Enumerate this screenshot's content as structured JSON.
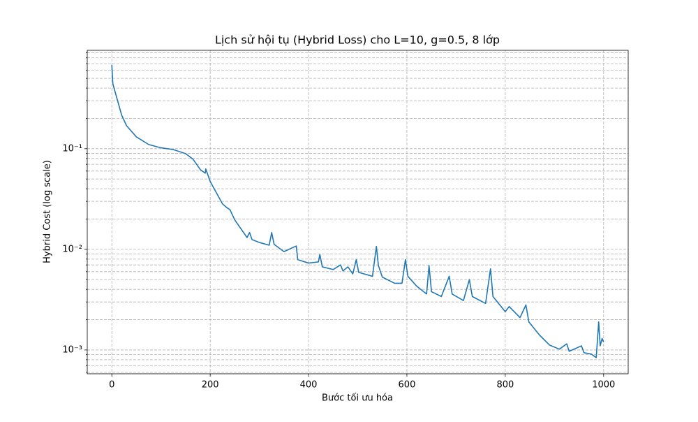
{
  "chart_data": {
    "type": "line",
    "title": "Lịch sử hội tụ (Hybrid Loss) cho L=10, g=0.5, 8 lớp",
    "x_label": "Bước tối ưu hóa",
    "y_label": "Hybrid Cost (log scale)",
    "log_y": true,
    "grid": true,
    "xlim": [
      -50,
      1050
    ],
    "xticks": [
      0,
      200,
      400,
      600,
      800,
      1000
    ],
    "ylim": [
      0.00058,
      0.95
    ],
    "yticks": [
      {
        "value": 0.001,
        "label": "10⁻³"
      },
      {
        "value": 0.01,
        "label": "10⁻²"
      },
      {
        "value": 0.1,
        "label": "10⁻¹"
      }
    ],
    "minor_yticks": [
      0.0006,
      0.0007,
      0.0008,
      0.0009,
      0.002,
      0.003,
      0.004,
      0.005,
      0.006,
      0.007,
      0.008,
      0.009,
      0.02,
      0.03,
      0.04,
      0.05,
      0.06,
      0.07,
      0.08,
      0.09,
      0.2,
      0.3,
      0.4,
      0.5,
      0.6,
      0.7,
      0.8,
      0.9
    ],
    "x": [
      0,
      2,
      10,
      20,
      30,
      50,
      75,
      100,
      125,
      150,
      165,
      180,
      190,
      191,
      200,
      225,
      235,
      240,
      250,
      275,
      280,
      285,
      300,
      320,
      325,
      330,
      350,
      375,
      378,
      400,
      420,
      423,
      428,
      450,
      465,
      470,
      480,
      490,
      497,
      502,
      530,
      538,
      542,
      550,
      575,
      590,
      597,
      602,
      620,
      640,
      645,
      650,
      670,
      686,
      692,
      715,
      727,
      733,
      760,
      770,
      775,
      800,
      808,
      830,
      842,
      848,
      870,
      890,
      910,
      925,
      930,
      955,
      960,
      975,
      985,
      990,
      993,
      997,
      1000
    ],
    "series": [
      {
        "name": "Hybrid Cost",
        "color": "#1f77b4",
        "values": [
          0.68,
          0.443,
          0.321,
          0.215,
          0.169,
          0.131,
          0.11,
          0.102,
          0.098,
          0.0894,
          0.0787,
          0.0619,
          0.0571,
          0.0629,
          0.0472,
          0.0283,
          0.0257,
          0.0249,
          0.0196,
          0.0131,
          0.0147,
          0.0125,
          0.0117,
          0.011,
          0.0147,
          0.0112,
          0.0095,
          0.0108,
          0.0079,
          0.0073,
          0.0075,
          0.0089,
          0.0067,
          0.0063,
          0.007,
          0.0061,
          0.0067,
          0.0057,
          0.0079,
          0.0059,
          0.0054,
          0.0107,
          0.0069,
          0.0053,
          0.0046,
          0.0046,
          0.0079,
          0.0054,
          0.0043,
          0.0036,
          0.0069,
          0.0038,
          0.0034,
          0.0054,
          0.0036,
          0.0031,
          0.005,
          0.0034,
          0.0029,
          0.0064,
          0.0034,
          0.0024,
          0.0027,
          0.0021,
          0.0028,
          0.0019,
          0.0014,
          0.00112,
          0.00102,
          0.00115,
          0.00097,
          0.0011,
          0.00094,
          0.00091,
          0.00084,
          0.0019,
          0.0011,
          0.0013,
          0.0012
        ]
      }
    ]
  }
}
